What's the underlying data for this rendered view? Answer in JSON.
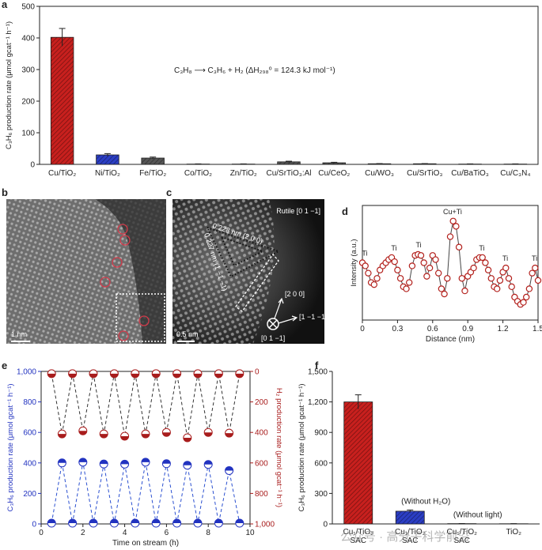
{
  "chart_data": [
    {
      "panel": "a",
      "type": "bar",
      "frame": true,
      "hatch": true,
      "categories": [
        "Cu/TiO₂",
        "Ni/TiO₂",
        "Fe/TiO₂",
        "Co/TiO₂",
        "Zn/TiO₂",
        "Cu/SrTiO₃:Al",
        "Cu/CeO₂",
        "Cu/WO₃",
        "Cu/SrTiO₃",
        "Cu/BaTiO₃",
        "Cu/C₃N₄"
      ],
      "values": [
        402,
        30,
        20,
        1,
        1,
        8,
        5,
        2,
        2,
        1,
        1
      ],
      "errors": [
        28,
        4,
        3,
        0.5,
        0.5,
        2,
        1.5,
        0.5,
        0.5,
        0.5,
        0.5
      ],
      "colors": [
        "#c8201e",
        "#2b3ec4",
        "#555555",
        "#555555",
        "#555555",
        "#555555",
        "#555555",
        "#555555",
        "#555555",
        "#555555",
        "#555555"
      ],
      "ylabel": "C₃H₆ production rate (μmol gcat⁻¹ h⁻¹)",
      "annotation": "C₃H₈ ⟶ C₃H₆ + H₂ (ΔH₂₉₈⁰ = 124.3 kJ mol⁻¹)",
      "ylim": [
        0,
        500
      ],
      "yticks": [
        0,
        100,
        200,
        300,
        400,
        500
      ]
    },
    {
      "panel": "d",
      "type": "line",
      "frame": true,
      "x": [
        0,
        0.025,
        0.05,
        0.075,
        0.1,
        0.125,
        0.15,
        0.175,
        0.2,
        0.225,
        0.25,
        0.275,
        0.3,
        0.325,
        0.35,
        0.375,
        0.4,
        0.425,
        0.45,
        0.475,
        0.5,
        0.525,
        0.55,
        0.575,
        0.6,
        0.625,
        0.65,
        0.675,
        0.7,
        0.725,
        0.75,
        0.775,
        0.8,
        0.825,
        0.85,
        0.875,
        0.9,
        0.925,
        0.95,
        0.975,
        1.0,
        1.025,
        1.05,
        1.075,
        1.1,
        1.125,
        1.15,
        1.175,
        1.2,
        1.225,
        1.25,
        1.275,
        1.3,
        1.325,
        1.35,
        1.375,
        1.4,
        1.425,
        1.45,
        1.475,
        1.5
      ],
      "values": [
        0.55,
        0.52,
        0.45,
        0.36,
        0.34,
        0.4,
        0.48,
        0.52,
        0.55,
        0.58,
        0.6,
        0.56,
        0.48,
        0.4,
        0.32,
        0.3,
        0.36,
        0.52,
        0.62,
        0.63,
        0.62,
        0.55,
        0.42,
        0.5,
        0.62,
        0.58,
        0.45,
        0.3,
        0.25,
        0.4,
        0.8,
        0.95,
        0.9,
        0.7,
        0.4,
        0.28,
        0.42,
        0.46,
        0.5,
        0.58,
        0.6,
        0.6,
        0.55,
        0.48,
        0.4,
        0.32,
        0.3,
        0.38,
        0.46,
        0.5,
        0.4,
        0.32,
        0.22,
        0.18,
        0.15,
        0.17,
        0.22,
        0.3,
        0.45,
        0.5,
        0.38
      ],
      "color": "#b3201c",
      "line_color": "#444444",
      "annotations": [
        {
          "text": "Ti",
          "x": 0.02,
          "y": 0.55
        },
        {
          "text": "Ti",
          "x": 0.27,
          "y": 0.6
        },
        {
          "text": "Ti",
          "x": 0.48,
          "y": 0.63
        },
        {
          "text": "Cu+Ti",
          "x": 0.77,
          "y": 0.95
        },
        {
          "text": "Ti",
          "x": 1.02,
          "y": 0.6
        },
        {
          "text": "Ti",
          "x": 1.22,
          "y": 0.5
        },
        {
          "text": "Ti",
          "x": 1.47,
          "y": 0.5
        }
      ],
      "xlabel": "Distance (nm)",
      "ylabel": "Intensity (a.u.)",
      "xlim": [
        0,
        1.5
      ],
      "xticks": [
        0,
        0.3,
        0.6,
        0.9,
        1.2,
        1.5
      ],
      "ylim": [
        0,
        1.1
      ]
    },
    {
      "panel": "e",
      "type": "line",
      "frame": true,
      "x": [
        0.5,
        1,
        1.5,
        2,
        2.5,
        3,
        3.5,
        4,
        4.5,
        5,
        5.5,
        6,
        6.5,
        7,
        7.5,
        8,
        8.5,
        9,
        9.5
      ],
      "series": [
        {
          "color": "#2233c0",
          "line_color": "#2a4fd0",
          "line_style": "dashed",
          "fill_half": "top",
          "values": [
            5,
            400,
            5,
            405,
            5,
            393,
            5,
            392,
            5,
            405,
            5,
            395,
            5,
            385,
            5,
            390,
            5,
            350,
            5
          ]
        },
        {
          "color": "#a81c1c",
          "line_color": "#333333",
          "line_style": "dashed",
          "fill_half": "bottom",
          "axis": "y2",
          "values": [
            15,
            410,
            15,
            390,
            15,
            410,
            15,
            425,
            15,
            410,
            15,
            400,
            15,
            435,
            15,
            400,
            15,
            405,
            15
          ]
        }
      ],
      "xlabel": "Time on stream (h)",
      "ylabel": "C₃H₆ production rate (μmol gcat⁻¹ h⁻¹)",
      "ylabel_color": "#2233c0",
      "y2label": "H₂ production rate (μmol gcat⁻¹ h⁻¹)",
      "y2label_color": "#a81c1c",
      "xlim": [
        0,
        10
      ],
      "xticks": [
        0,
        2,
        4,
        6,
        8,
        10
      ],
      "ylim": [
        0,
        1000
      ],
      "yticks": [
        0,
        200,
        400,
        600,
        800,
        {
          "value": 1000,
          "label": "1,000"
        }
      ],
      "y2lim": [
        1000,
        0
      ],
      "y2ticks": [
        0,
        200,
        400,
        600,
        800,
        {
          "value": 1000,
          "label": "1,000"
        }
      ]
    },
    {
      "panel": "f",
      "type": "bar",
      "frame": false,
      "hatch": true,
      "categories": [
        [
          "Cu₁/TiO₂",
          "SAC"
        ],
        [
          "Cu₁/TiO₂",
          "SAC"
        ],
        [
          "Cu₁/TiO₂",
          "SAC"
        ],
        [
          "TiO₂"
        ]
      ],
      "bar_labels": [
        null,
        "(Without H₂O)",
        "(Without light)",
        null
      ],
      "values": [
        1200,
        125,
        3,
        2
      ],
      "errors": [
        70,
        12,
        1,
        1
      ],
      "colors": [
        "#c8201e",
        "#2b3ec4",
        "#555555",
        "#555555"
      ],
      "ylabel": "C₃H₆ production rate (μmol gcat⁻¹ h⁻¹)",
      "ylim": [
        0,
        1500
      ],
      "yticks": [
        0,
        300,
        600,
        900,
        {
          "value": 1200,
          "label": "1,200"
        },
        {
          "value": 1500,
          "label": "1,500"
        }
      ],
      "watermark": "公众号 · 高分子科学前沿"
    }
  ],
  "images": [
    {
      "panel": "b",
      "scale_bar": "1 nm"
    },
    {
      "panel": "c",
      "title": "Rutile [0 1 −1]",
      "spacings": [
        "0.228 nm (2 0 0)",
        "0.227 nm (1 −1 −1)"
      ],
      "directions": [
        "[2 0 0]",
        "[1 −1 −1]",
        "[0 1 −1]"
      ],
      "scale_bar": "0.5 nm"
    }
  ]
}
